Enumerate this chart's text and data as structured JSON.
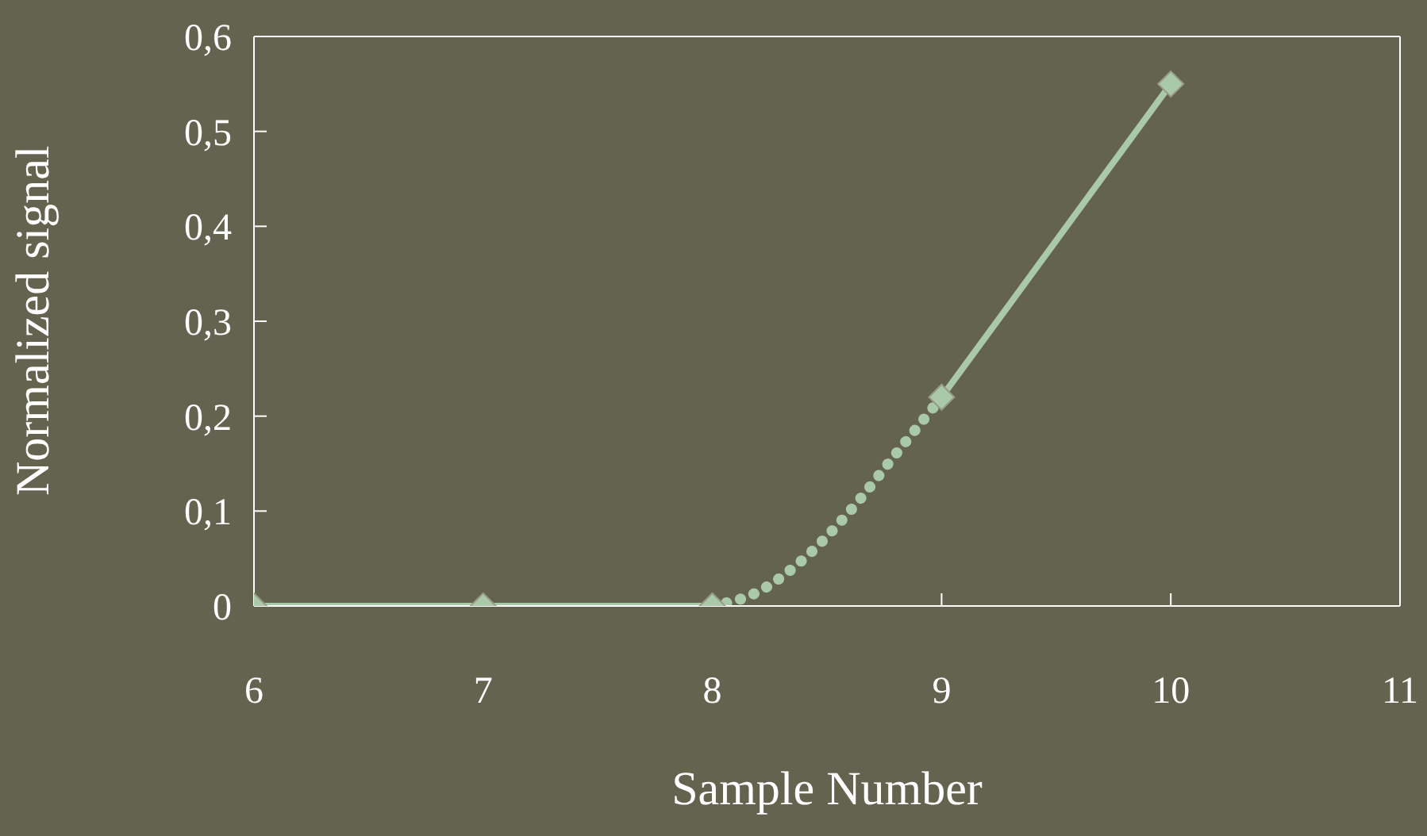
{
  "chart_data": {
    "type": "line",
    "xlabel": "Sample Number",
    "ylabel": "Normalized signal",
    "xlim": [
      6,
      11
    ],
    "xticks": [
      6,
      7,
      8,
      9,
      10,
      11
    ],
    "ylim": [
      0,
      0.6
    ],
    "yticks": [
      0,
      {
        "value": 0.1,
        "label": "0,1"
      },
      {
        "value": 0.2,
        "label": "0,2"
      },
      {
        "value": 0.3,
        "label": "0,3"
      },
      {
        "value": 0.4,
        "label": "0,4"
      },
      {
        "value": 0.5,
        "label": "0,5"
      },
      {
        "value": 0.6,
        "label": "0,6"
      }
    ],
    "grid": false,
    "series": [
      {
        "color": "#a9c9a9",
        "x": [
          6,
          7,
          8
        ],
        "values": [
          0,
          0,
          0
        ],
        "marker": "diamond",
        "line_style": "solid"
      },
      {
        "color": "#a9c9a9",
        "x": [
          8,
          8.2,
          8.4,
          8.6,
          8.8,
          9
        ],
        "values": [
          0,
          0.015,
          0.05,
          0.1,
          0.16,
          0.22
        ],
        "marker": "none",
        "line_style": "dotted"
      },
      {
        "color": "#a9c9a9",
        "x": [
          9,
          10
        ],
        "values": [
          0.22,
          0.55
        ],
        "marker": "diamond",
        "line_style": "solid"
      }
    ]
  }
}
